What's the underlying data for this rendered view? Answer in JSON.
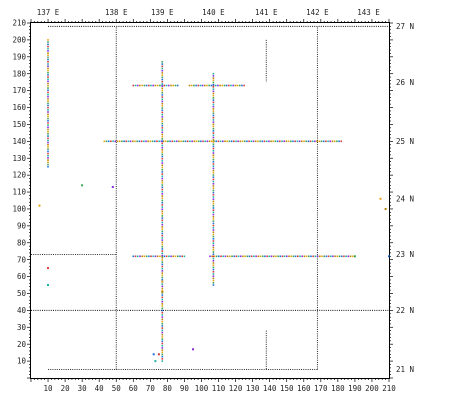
{
  "chart_data": {
    "type": "scatter",
    "title": "",
    "xlabel": "",
    "ylabel": "",
    "xlim": [
      0,
      210
    ],
    "ylim": [
      0,
      210
    ],
    "grid": false,
    "legend": "none",
    "x_ticks": [
      "10",
      "20",
      "30",
      "40",
      "50",
      "60",
      "70",
      "80",
      "90",
      "100",
      "110",
      "120",
      "130",
      "140",
      "150",
      "160",
      "170",
      "180",
      "190",
      "200",
      "210"
    ],
    "y_ticks": [
      "10",
      "20",
      "30",
      "40",
      "50",
      "60",
      "70",
      "80",
      "90",
      "100",
      "110",
      "120",
      "130",
      "140",
      "150",
      "160",
      "170",
      "180",
      "190",
      "200",
      "210"
    ],
    "top_ticks": [
      {
        "label": "137 E",
        "x": 10
      },
      {
        "label": "138 E",
        "x": 50
      },
      {
        "label": "139 E",
        "x": 77
      },
      {
        "label": "140 E",
        "x": 107
      },
      {
        "label": "141 E",
        "x": 138
      },
      {
        "label": "142 E",
        "x": 168
      },
      {
        "label": "143 E",
        "x": 198
      }
    ],
    "right_ticks": [
      {
        "label": "27 N",
        "y": 208
      },
      {
        "label": "26 N",
        "y": 175
      },
      {
        "label": "25 N",
        "y": 140
      },
      {
        "label": "24 N",
        "y": 106
      },
      {
        "label": "23 N",
        "y": 73
      },
      {
        "label": "22 N",
        "y": 40
      },
      {
        "label": "21 N",
        "y": 5
      }
    ],
    "boundary_lines": {
      "vertical": [
        {
          "x": 50,
          "y0": 5,
          "y1": 208
        },
        {
          "x": 168,
          "y0": 5,
          "y1": 208
        },
        {
          "x": 138,
          "y0": 200,
          "y1": 175
        },
        {
          "x": 138,
          "y0": 28,
          "y1": 5
        }
      ],
      "horizontal": [
        {
          "y": 40,
          "x0": 0,
          "x1": 210
        },
        {
          "y": 73,
          "x0": 0,
          "x1": 50
        },
        {
          "y": 5,
          "x0": 10,
          "x1": 168
        },
        {
          "y": 208,
          "x0": 10,
          "x1": 210
        }
      ]
    },
    "series": [
      {
        "segments": [
          {
            "x0": 43,
            "y0": 140,
            "x1": 182,
            "y1": 140
          },
          {
            "x0": 60,
            "y0": 173,
            "x1": 86,
            "y1": 173
          },
          {
            "x0": 93,
            "y0": 173,
            "x1": 125,
            "y1": 173
          },
          {
            "x0": 60,
            "y0": 72,
            "x1": 90,
            "y1": 72
          },
          {
            "x0": 105,
            "y0": 72,
            "x1": 190,
            "y1": 72
          },
          {
            "x0": 77,
            "y0": 187,
            "x1": 77,
            "y1": 10
          },
          {
            "x0": 107,
            "y0": 180,
            "x1": 107,
            "y1": 55
          },
          {
            "x0": 10,
            "y0": 200,
            "x1": 10,
            "y1": 125
          }
        ]
      },
      {
        "points": [
          [
            5,
            102
          ],
          [
            30,
            114
          ],
          [
            72,
            14
          ],
          [
            75,
            14
          ],
          [
            73,
            10
          ],
          [
            95,
            17
          ],
          [
            208,
            100
          ],
          [
            205,
            106
          ],
          [
            190,
            72
          ],
          [
            210,
            72
          ],
          [
            10,
            65
          ],
          [
            10,
            55
          ],
          [
            48,
            113
          ],
          [
            77,
            51
          ],
          [
            77,
            57
          ]
        ]
      }
    ]
  }
}
